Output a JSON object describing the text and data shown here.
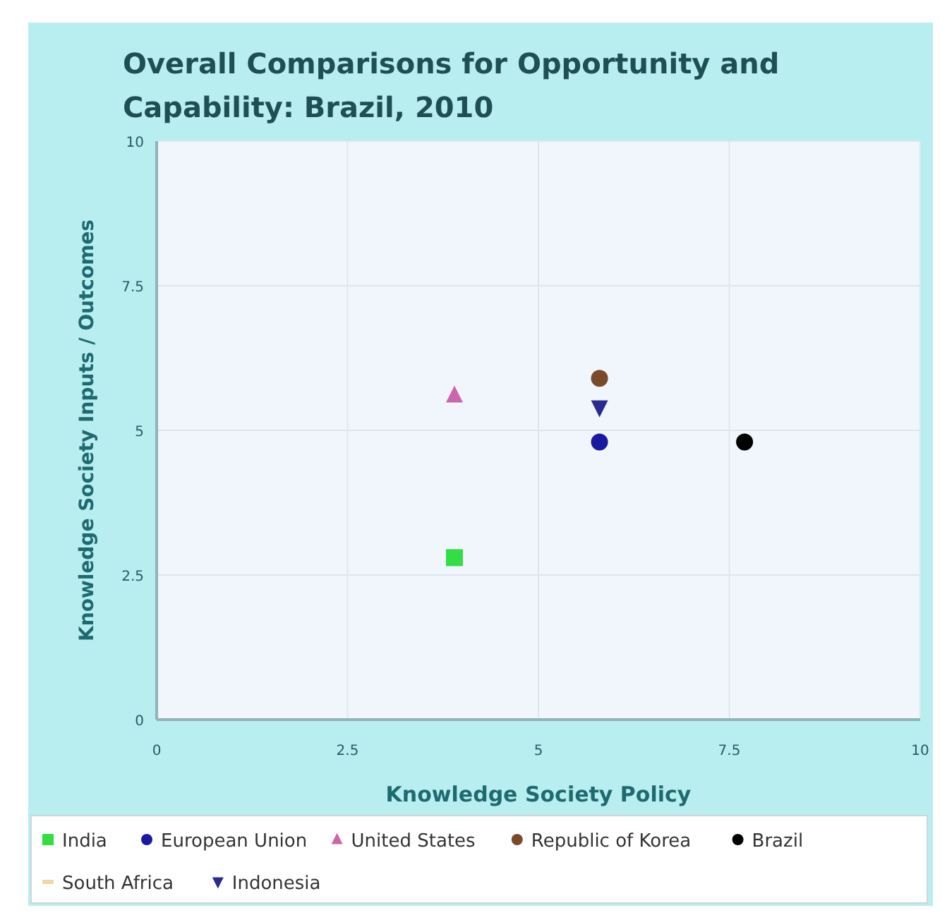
{
  "chart_data": {
    "type": "scatter",
    "title": "Overall Comparisons for Opportunity and Capability: Brazil, 2010",
    "xlabel": "Knowledge Society Policy",
    "ylabel": "Knowledge Society Inputs / Outcomes",
    "xlim": [
      0,
      10
    ],
    "ylim": [
      0,
      10
    ],
    "xticks": [
      0,
      2.5,
      5,
      7.5,
      10
    ],
    "yticks": [
      0,
      2.5,
      5,
      7.5,
      10
    ],
    "grid": true,
    "legend": "bottom",
    "series": [
      {
        "name": "India",
        "color": "#33dd44",
        "marker": "square",
        "x": [
          3.9
        ],
        "values": [
          2.8
        ]
      },
      {
        "name": "European Union",
        "color": "#1a1aa0",
        "marker": "circle",
        "x": [
          5.8
        ],
        "values": [
          4.8
        ]
      },
      {
        "name": "United States",
        "color": "#cc66aa",
        "marker": "triangle",
        "x": [
          3.9
        ],
        "values": [
          5.6
        ]
      },
      {
        "name": "Republic of Korea",
        "color": "#7a4a2a",
        "marker": "circle",
        "x": [
          5.8
        ],
        "values": [
          5.9
        ]
      },
      {
        "name": "Brazil",
        "color": "#000000",
        "marker": "circle",
        "x": [
          7.7
        ],
        "values": [
          4.8
        ]
      },
      {
        "name": "South Africa",
        "color": "#f0d8a0",
        "marker": "cross"
      },
      {
        "name": "Indonesia",
        "color": "#2a2a90",
        "marker": "triangle-down",
        "x": [
          5.8
        ],
        "values": [
          5.4
        ]
      }
    ]
  }
}
